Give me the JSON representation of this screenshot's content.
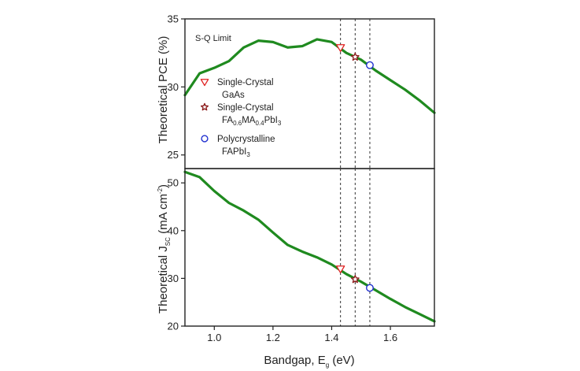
{
  "chart_data": [
    {
      "type": "line",
      "panel": "top",
      "ylabel": "Theoretical PCE (%)",
      "xlim": [
        0.9,
        1.75
      ],
      "ylim": [
        24,
        35
      ],
      "yticks": [
        25,
        30,
        35
      ],
      "annotation": "S-Q Limit",
      "series": [
        {
          "color": "#1f8a1f",
          "x": [
            0.9,
            0.95,
            1.0,
            1.05,
            1.1,
            1.15,
            1.2,
            1.25,
            1.3,
            1.35,
            1.4,
            1.45,
            1.5,
            1.55,
            1.6,
            1.65,
            1.7,
            1.75
          ],
          "y": [
            29.4,
            31.0,
            31.4,
            31.9,
            32.9,
            33.4,
            33.3,
            32.9,
            33.0,
            33.5,
            33.3,
            32.5,
            32.0,
            31.2,
            30.5,
            29.8,
            29.0,
            28.1
          ]
        }
      ],
      "markers": [
        {
          "x": 1.43,
          "y": 32.9,
          "shape": "triangle-down",
          "color": "#e02020"
        },
        {
          "x": 1.48,
          "y": 32.2,
          "shape": "star",
          "color": "#8b1a1a"
        },
        {
          "x": 1.53,
          "y": 31.6,
          "shape": "circle",
          "color": "#2030d0"
        }
      ],
      "vlines": [
        1.43,
        1.48,
        1.53
      ]
    },
    {
      "type": "line",
      "panel": "bottom",
      "ylabel_main": "Theoretical J",
      "ylabel_sub": "SC",
      "ylabel_unit": " (mA cm",
      "ylabel_sup": "-2",
      "ylabel_end": ")",
      "xlabel_main": "Bandgap, E",
      "xlabel_sub": "g",
      "xlabel_unit": " (eV)",
      "xlim": [
        0.9,
        1.75
      ],
      "ylim": [
        20,
        53
      ],
      "yticks": [
        20,
        30,
        40,
        50
      ],
      "xticks": [
        1.0,
        1.2,
        1.4,
        1.6
      ],
      "xtick_labels": [
        "1.0",
        "1.2",
        "1.4",
        "1.6"
      ],
      "series": [
        {
          "color": "#1f8a1f",
          "x": [
            0.9,
            0.95,
            1.0,
            1.05,
            1.1,
            1.15,
            1.2,
            1.25,
            1.3,
            1.35,
            1.4,
            1.45,
            1.5,
            1.55,
            1.6,
            1.65,
            1.7,
            1.75
          ],
          "y": [
            52.3,
            51.2,
            48.3,
            45.8,
            44.2,
            42.3,
            39.6,
            37.0,
            35.6,
            34.4,
            32.9,
            30.9,
            29.3,
            27.5,
            25.7,
            24.0,
            22.5,
            21.0
          ]
        }
      ],
      "markers": [
        {
          "x": 1.43,
          "y": 32.0,
          "shape": "triangle-down",
          "color": "#e02020"
        },
        {
          "x": 1.48,
          "y": 29.8,
          "shape": "star",
          "color": "#8b1a1a"
        },
        {
          "x": 1.53,
          "y": 28.0,
          "shape": "circle",
          "color": "#2030d0"
        }
      ],
      "vlines": [
        1.43,
        1.48,
        1.53
      ]
    }
  ],
  "legend": [
    {
      "shape": "triangle-down",
      "color": "#e02020",
      "line1": "Single-Crystal",
      "line2_main": "GaAs",
      "line2_parts": []
    },
    {
      "shape": "star",
      "color": "#8b1a1a",
      "line1": "Single-Crystal",
      "line2_main": "FA",
      "line2_parts": [
        [
          "sub",
          "0.6"
        ],
        [
          "base",
          "MA"
        ],
        [
          "sub",
          "0.4"
        ],
        [
          "base",
          "PbI"
        ],
        [
          "sub",
          "3"
        ]
      ]
    },
    {
      "shape": "circle",
      "color": "#2030d0",
      "line1": "Polycrystalline",
      "line2_main": "FAPbI",
      "line2_parts": [
        [
          "sub",
          "3"
        ]
      ]
    }
  ]
}
